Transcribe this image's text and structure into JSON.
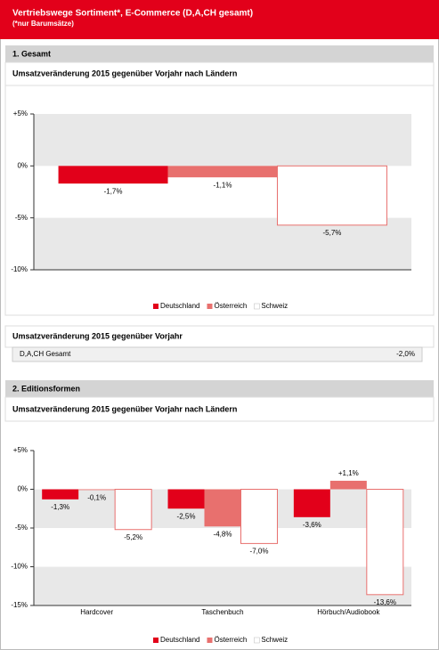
{
  "header": {
    "title": "Vertriebswege Sortiment*, E-Commerce (D,A,CH gesamt)",
    "subtitle": "(*nur Barumsätze)"
  },
  "sections": [
    {
      "title": "1. Gesamt"
    },
    {
      "title": "2. Editionsformen"
    }
  ],
  "summary": {
    "title": "Umsatzveränderung 2015 gegenüber Vorjahr",
    "rows": [
      [
        "D,A,CH Gesamt",
        "-2,0%"
      ]
    ]
  },
  "chart_data": [
    {
      "type": "bar",
      "title": "Umsatzveränderung 2015 gegenüber Vorjahr nach Ländern",
      "categories": [
        null
      ],
      "series": [
        {
          "name": "Deutschland",
          "color": "#e2001a",
          "values": [
            -1.7
          ],
          "value_labels": [
            "-1,7%"
          ]
        },
        {
          "name": "Österreich",
          "color": "#e8706e",
          "values": [
            -1.1
          ],
          "value_labels": [
            "-1,1%"
          ]
        },
        {
          "name": "Schweiz",
          "color": "#ffffff",
          "values": [
            -5.7
          ],
          "value_labels": [
            "-5,7%"
          ]
        }
      ],
      "ylim": [
        -10,
        5
      ],
      "yticks": [
        {
          "value": 5,
          "label": "+5%"
        },
        {
          "value": 0,
          "label": "0%"
        },
        {
          "value": -5,
          "label": "-5%"
        },
        {
          "value": -10,
          "label": "-10%"
        }
      ],
      "shaded_bands": [
        [
          0,
          5
        ],
        [
          -10,
          -5
        ]
      ],
      "legend": "bottom"
    },
    {
      "type": "bar",
      "title": "Umsatzveränderung 2015 gegenüber Vorjahr nach Ländern",
      "categories": [
        "Hardcover",
        "Taschenbuch",
        "Hörbuch/Audiobook"
      ],
      "series": [
        {
          "name": "Deutschland",
          "color": "#e2001a",
          "values": [
            -1.3,
            -2.5,
            -3.6
          ],
          "value_labels": [
            "-1,3%",
            "-2,5%",
            "-3,6%"
          ]
        },
        {
          "name": "Österreich",
          "color": "#e8706e",
          "values": [
            -0.1,
            -4.8,
            1.1
          ],
          "value_labels": [
            "-0,1%",
            "-4,8%",
            "+1,1%"
          ]
        },
        {
          "name": "Schweiz",
          "color": "#ffffff",
          "values": [
            -5.2,
            -7.0,
            -13.6
          ],
          "value_labels": [
            "-5,2%",
            "-7,0%",
            "-13,6%"
          ]
        }
      ],
      "ylim": [
        -15,
        5
      ],
      "yticks": [
        {
          "value": 5,
          "label": "+5%"
        },
        {
          "value": 0,
          "label": "0%"
        },
        {
          "value": -5,
          "label": "-5%"
        },
        {
          "value": -10,
          "label": "-10%"
        },
        {
          "value": -15,
          "label": "-15%"
        }
      ],
      "shaded_bands": [
        [
          -5,
          0
        ],
        [
          -15,
          -10
        ]
      ],
      "legend": "bottom"
    }
  ]
}
